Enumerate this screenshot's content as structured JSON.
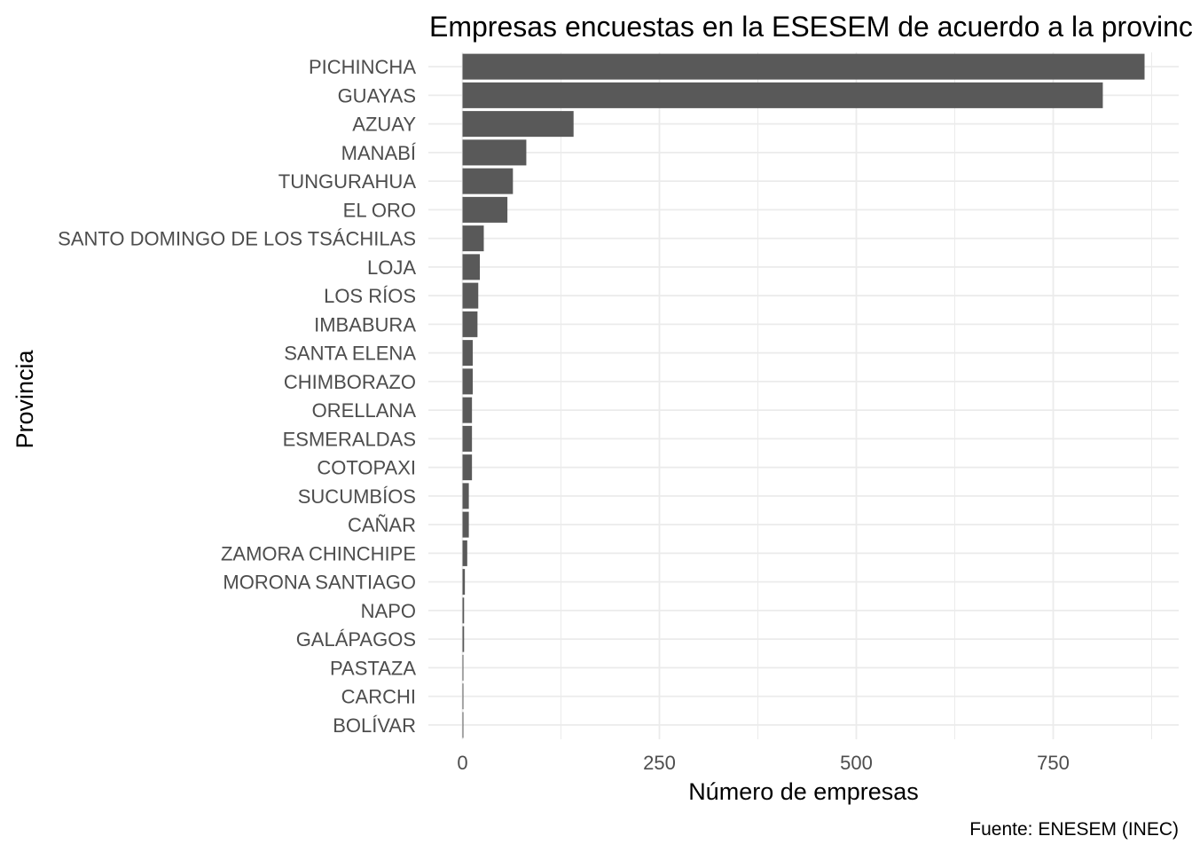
{
  "chart_data": {
    "type": "bar",
    "orientation": "horizontal",
    "title": "Empresas encuestas en la ESESEM de acuerdo a la provincia",
    "xlabel": "Número de empresas",
    "ylabel": "Provincia",
    "caption": "Fuente: ENESEM (INEC)",
    "xlim": [
      0,
      900
    ],
    "x_ticks": [
      0,
      250,
      500,
      750
    ],
    "x_tick_labels": [
      "0",
      "250",
      "500",
      "750"
    ],
    "grid": true,
    "legend": "none",
    "categories": [
      "PICHINCHA",
      "GUAYAS",
      "AZUAY",
      "MANABÍ",
      "TUNGURAHUA",
      "EL ORO",
      "SANTO DOMINGO DE LOS TSÁCHILAS",
      "LOJA",
      "LOS RÍOS",
      "IMBABURA",
      "SANTA ELENA",
      "CHIMBORAZO",
      "ORELLANA",
      "ESMERALDAS",
      "COTOPAXI",
      "SUCUMBÍOS",
      "CAÑAR",
      "ZAMORA CHINCHIPE",
      "MORONA SANTIAGO",
      "NAPO",
      "GALÁPAGOS",
      "PASTAZA",
      "CARCHI",
      "BOLÍVAR"
    ],
    "values": [
      866,
      813,
      141,
      81,
      64,
      57,
      27,
      22,
      20,
      19,
      13,
      13,
      12,
      12,
      12,
      8,
      8,
      6,
      3,
      2,
      2,
      1,
      1,
      1
    ],
    "colors": {
      "bar": "#595959",
      "grid": "#ebebeb",
      "text": "#4d4d4d",
      "title": "#000000"
    }
  }
}
